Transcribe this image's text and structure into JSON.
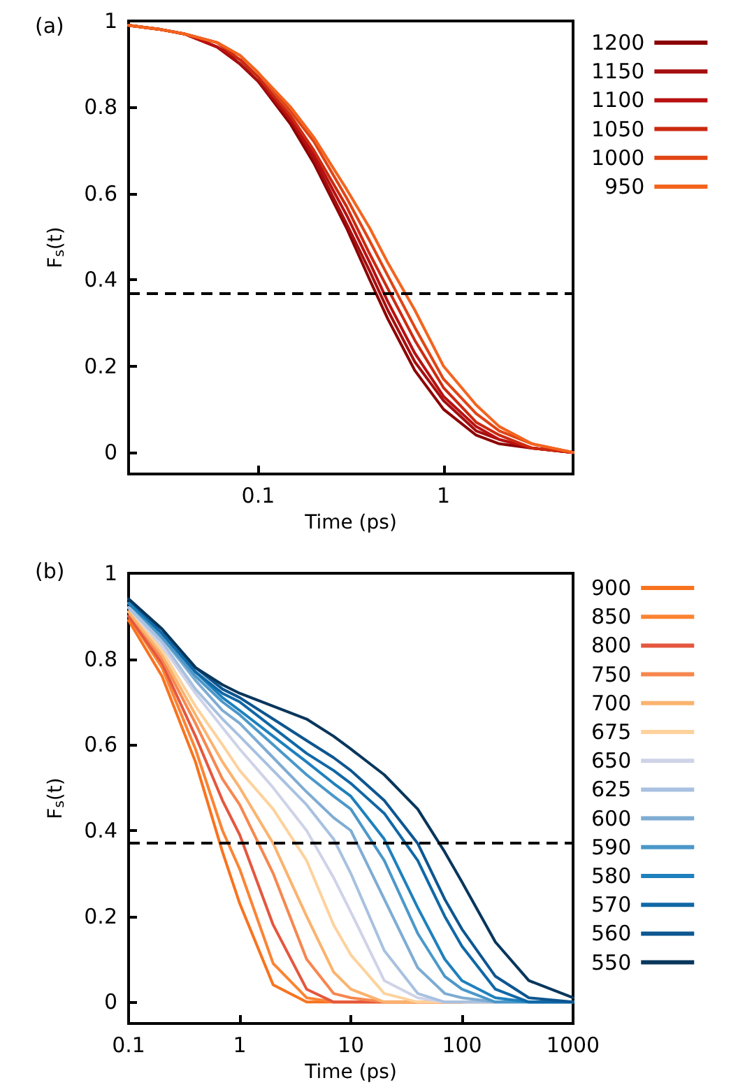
{
  "chart_data": [
    {
      "type": "line",
      "title": "(a)",
      "xlabel": "Time (ps)",
      "ylabel": "F$_{s}$(t)",
      "log": "x",
      "legend": "right",
      "x": [
        0.02,
        0.03,
        0.04,
        0.06,
        0.08,
        0.1,
        0.15,
        0.2,
        0.3,
        0.4,
        0.5,
        0.7,
        1,
        1.5,
        2,
        3,
        5
      ],
      "xlim": [
        0.02,
        5
      ],
      "xticks": [
        0.1,
        1
      ],
      "ylim": [
        -0.05,
        1
      ],
      "yticks": [
        0,
        0.2,
        0.4,
        0.6,
        0.8,
        1
      ],
      "ref_lines": [
        {
          "axis": "y",
          "value": 0.37,
          "color": "#000000",
          "line_style": "dashed"
        }
      ],
      "series": [
        {
          "name": "1200",
          "color": "#8b0000",
          "values": [
            0.99,
            0.98,
            0.97,
            0.94,
            0.9,
            0.86,
            0.76,
            0.67,
            0.52,
            0.4,
            0.31,
            0.19,
            0.1,
            0.04,
            0.02,
            0.01,
            0
          ]
        },
        {
          "name": "1150",
          "color": "#a50f0f",
          "values": [
            0.99,
            0.98,
            0.97,
            0.94,
            0.9,
            0.86,
            0.77,
            0.68,
            0.53,
            0.42,
            0.33,
            0.21,
            0.12,
            0.05,
            0.03,
            0.01,
            0
          ]
        },
        {
          "name": "1100",
          "color": "#b81010",
          "values": [
            0.99,
            0.98,
            0.97,
            0.94,
            0.91,
            0.87,
            0.77,
            0.69,
            0.55,
            0.44,
            0.35,
            0.23,
            0.13,
            0.06,
            0.03,
            0.01,
            0
          ]
        },
        {
          "name": "1050",
          "color": "#cc2a10",
          "values": [
            0.99,
            0.98,
            0.97,
            0.95,
            0.91,
            0.87,
            0.78,
            0.7,
            0.57,
            0.46,
            0.38,
            0.26,
            0.15,
            0.07,
            0.04,
            0.01,
            0
          ]
        },
        {
          "name": "1000",
          "color": "#e04515",
          "values": [
            0.99,
            0.98,
            0.97,
            0.95,
            0.92,
            0.88,
            0.79,
            0.72,
            0.59,
            0.49,
            0.41,
            0.29,
            0.17,
            0.09,
            0.05,
            0.02,
            0
          ]
        },
        {
          "name": "950",
          "color": "#f4641e",
          "values": [
            0.99,
            0.98,
            0.97,
            0.95,
            0.92,
            0.88,
            0.8,
            0.73,
            0.61,
            0.52,
            0.44,
            0.33,
            0.2,
            0.11,
            0.06,
            0.02,
            0
          ]
        }
      ]
    },
    {
      "type": "line",
      "title": "(b)",
      "xlabel": "Time (ps)",
      "ylabel": "F$_{s}$(t)",
      "log": "x",
      "legend": "right",
      "x": [
        0.1,
        0.2,
        0.4,
        0.7,
        1,
        2,
        4,
        7,
        10,
        20,
        40,
        70,
        100,
        200,
        400,
        1000
      ],
      "xlim": [
        0.1,
        1000
      ],
      "xticks": [
        0.1,
        1,
        10,
        100,
        1000
      ],
      "ylim": [
        -0.05,
        1
      ],
      "yticks": [
        0,
        0.2,
        0.4,
        0.6,
        0.8,
        1
      ],
      "ref_lines": [
        {
          "axis": "y",
          "value": 0.37,
          "color": "#000000",
          "line_style": "dashed"
        }
      ],
      "series": [
        {
          "name": "900",
          "color": "#f8731f",
          "values": [
            0.89,
            0.76,
            0.56,
            0.35,
            0.23,
            0.04,
            0,
            0,
            0,
            0,
            0,
            0,
            0,
            null,
            null,
            null
          ]
        },
        {
          "name": "850",
          "color": "#fb8434",
          "values": [
            0.9,
            0.78,
            0.59,
            0.4,
            0.31,
            0.09,
            0.01,
            0,
            0,
            0,
            0,
            0,
            0,
            null,
            null,
            null
          ]
        },
        {
          "name": "800",
          "color": "#e4573e",
          "values": [
            0.9,
            0.79,
            0.62,
            0.47,
            0.39,
            0.18,
            0.03,
            0,
            0,
            0,
            0,
            0,
            0,
            0,
            null,
            null
          ]
        },
        {
          "name": "750",
          "color": "#f6874f",
          "values": [
            0.91,
            0.8,
            0.65,
            0.52,
            0.46,
            0.3,
            0.1,
            0.02,
            0.01,
            0,
            0,
            0,
            0,
            null,
            null,
            null
          ]
        },
        {
          "name": "700",
          "color": "#fbb36e",
          "values": [
            0.91,
            0.81,
            0.67,
            0.56,
            0.5,
            0.37,
            0.2,
            0.07,
            0.03,
            0,
            0,
            0,
            0,
            null,
            null,
            null
          ]
        },
        {
          "name": "675",
          "color": "#fdd29c",
          "values": [
            0.92,
            0.82,
            0.69,
            0.6,
            0.54,
            0.45,
            0.33,
            0.18,
            0.11,
            0.02,
            0,
            0,
            0,
            0,
            null,
            null
          ]
        },
        {
          "name": "650",
          "color": "#cfd3e8",
          "values": [
            0.92,
            0.83,
            0.72,
            0.64,
            0.59,
            0.5,
            0.4,
            0.29,
            0.21,
            0.05,
            0.01,
            0,
            0,
            0,
            0,
            0
          ]
        },
        {
          "name": "625",
          "color": "#a8c1e0",
          "values": [
            0.92,
            0.84,
            0.73,
            0.66,
            0.62,
            0.54,
            0.46,
            0.38,
            0.3,
            0.12,
            0.02,
            0,
            0,
            0,
            0,
            0
          ]
        },
        {
          "name": "600",
          "color": "#7eacd3",
          "values": [
            0.93,
            0.85,
            0.75,
            0.68,
            0.65,
            0.57,
            0.49,
            0.43,
            0.4,
            0.24,
            0.08,
            0.02,
            0.01,
            0,
            0,
            0
          ]
        },
        {
          "name": "590",
          "color": "#4b98c9",
          "values": [
            0.93,
            0.85,
            0.76,
            0.7,
            0.67,
            0.6,
            0.53,
            0.48,
            0.45,
            0.33,
            0.16,
            0.06,
            0.03,
            0,
            0,
            0
          ]
        },
        {
          "name": "580",
          "color": "#1e80bd",
          "values": [
            0.93,
            0.86,
            0.77,
            0.71,
            0.68,
            0.62,
            0.56,
            0.51,
            0.48,
            0.38,
            0.22,
            0.1,
            0.05,
            0.01,
            0,
            0
          ]
        },
        {
          "name": "570",
          "color": "#1068a6",
          "values": [
            0.94,
            0.86,
            0.77,
            0.72,
            0.7,
            0.64,
            0.58,
            0.54,
            0.51,
            0.44,
            0.33,
            0.2,
            0.13,
            0.03,
            0,
            0
          ]
        },
        {
          "name": "560",
          "color": "#0d5690",
          "values": [
            0.94,
            0.87,
            0.78,
            0.73,
            0.71,
            0.66,
            0.61,
            0.57,
            0.54,
            0.47,
            0.37,
            0.24,
            0.17,
            0.06,
            0.01,
            0
          ]
        },
        {
          "name": "550",
          "color": "#08365c",
          "values": [
            0.94,
            0.87,
            0.78,
            0.74,
            0.72,
            0.69,
            0.66,
            0.62,
            0.59,
            0.53,
            0.45,
            0.35,
            0.28,
            0.14,
            0.05,
            0.01
          ]
        }
      ]
    }
  ]
}
